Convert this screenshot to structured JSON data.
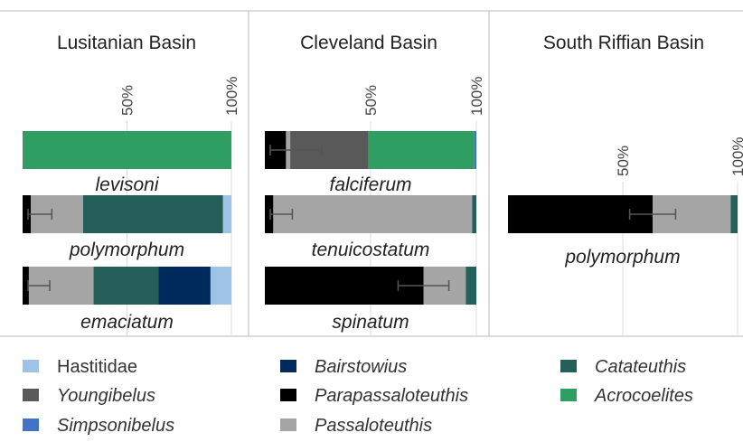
{
  "chart_data": [
    {
      "type": "bar",
      "title": "Lusitanian Basin",
      "categories": [
        "levisoni",
        "polymorphum",
        "emaciatum"
      ],
      "xlim": [
        0,
        100
      ],
      "xticks": [
        {
          "value": 50,
          "label": "50%"
        },
        {
          "value": 100,
          "label": "100%"
        }
      ],
      "grid": true,
      "series": [
        {
          "name": "Parapassaloteuthis",
          "color": "#000000",
          "values": [
            0,
            4,
            3
          ],
          "errors": [
            null,
            10,
            10
          ]
        },
        {
          "name": "Passaloteuthis",
          "color": "#a5a5a5",
          "values": [
            0,
            25,
            31
          ]
        },
        {
          "name": "Youngibelus",
          "color": "#595959",
          "values": [
            0,
            0,
            0
          ]
        },
        {
          "name": "Catateuthis",
          "color": "#245f59",
          "values": [
            0,
            67,
            31
          ]
        },
        {
          "name": "Bairstowius",
          "color": "#002a5c",
          "values": [
            0,
            0,
            25
          ]
        },
        {
          "name": "Acrocoelites",
          "color": "#2e9e62",
          "values": [
            100,
            0,
            0
          ]
        },
        {
          "name": "Simpsonibelus",
          "color": "#4472c4",
          "values": [
            0,
            0,
            0
          ]
        },
        {
          "name": "Hastitidae",
          "color": "#9dc3e6",
          "values": [
            0,
            4,
            10
          ]
        }
      ]
    },
    {
      "type": "bar",
      "title": "Cleveland Basin",
      "categories": [
        "falciferum",
        "tenuicostatum",
        "spinatum"
      ],
      "xlim": [
        0,
        100
      ],
      "xticks": [
        {
          "value": 50,
          "label": "50%"
        },
        {
          "value": 100,
          "label": "100%"
        }
      ],
      "grid": true,
      "series": [
        {
          "name": "Parapassaloteuthis",
          "color": "#000000",
          "values": [
            10,
            4,
            75
          ],
          "errors": [
            17,
            9,
            12
          ]
        },
        {
          "name": "Passaloteuthis",
          "color": "#a5a5a5",
          "values": [
            2,
            94,
            20
          ]
        },
        {
          "name": "Youngibelus",
          "color": "#595959",
          "values": [
            37,
            0,
            0
          ]
        },
        {
          "name": "Catateuthis",
          "color": "#245f59",
          "values": [
            0,
            2,
            5
          ]
        },
        {
          "name": "Bairstowius",
          "color": "#002a5c",
          "values": [
            0,
            0,
            0
          ]
        },
        {
          "name": "Acrocoelites",
          "color": "#2e9e62",
          "values": [
            50,
            0,
            0
          ]
        },
        {
          "name": "Simpsonibelus",
          "color": "#4472c4",
          "values": [
            1,
            0,
            0
          ]
        },
        {
          "name": "Hastitidae",
          "color": "#9dc3e6",
          "values": [
            0,
            0,
            0
          ]
        }
      ]
    },
    {
      "type": "bar",
      "title": "South Riffian Basin",
      "categories": [
        "polymorphum"
      ],
      "xlim": [
        0,
        100
      ],
      "xticks": [
        {
          "value": 50,
          "label": "50%"
        },
        {
          "value": 100,
          "label": "100%"
        }
      ],
      "grid": true,
      "series": [
        {
          "name": "Parapassaloteuthis",
          "color": "#000000",
          "values": [
            63
          ],
          "errors": [
            10
          ]
        },
        {
          "name": "Passaloteuthis",
          "color": "#a5a5a5",
          "values": [
            34
          ]
        },
        {
          "name": "Youngibelus",
          "color": "#595959",
          "values": [
            0
          ]
        },
        {
          "name": "Catateuthis",
          "color": "#245f59",
          "values": [
            3
          ]
        },
        {
          "name": "Bairstowius",
          "color": "#002a5c",
          "values": [
            0
          ]
        },
        {
          "name": "Acrocoelites",
          "color": "#2e9e62",
          "values": [
            0
          ]
        },
        {
          "name": "Simpsonibelus",
          "color": "#4472c4",
          "values": [
            0
          ]
        },
        {
          "name": "Hastitidae",
          "color": "#9dc3e6",
          "values": [
            0
          ]
        }
      ]
    }
  ]
}
